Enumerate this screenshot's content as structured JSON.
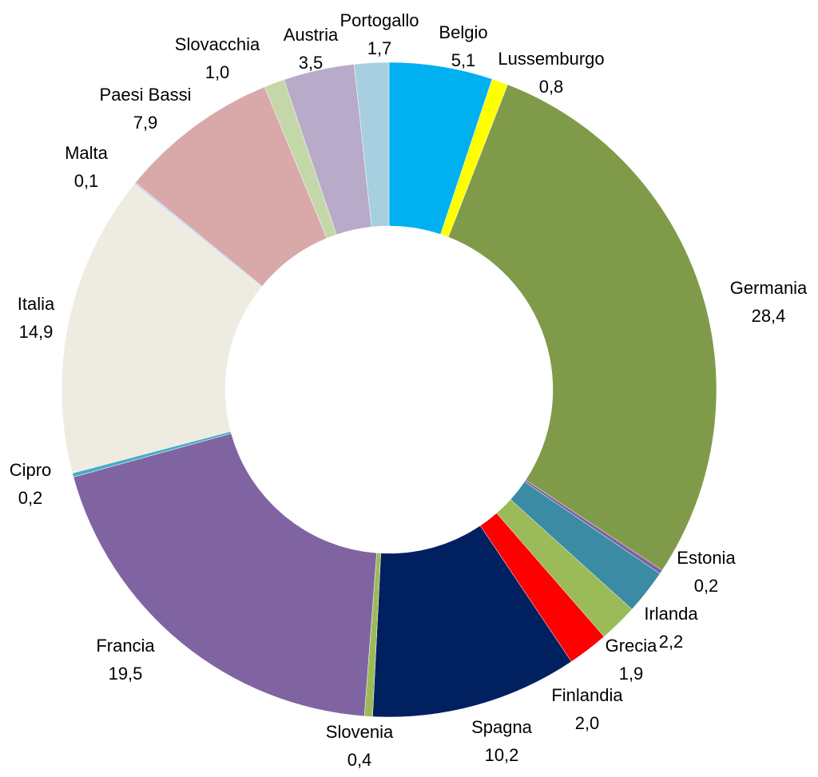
{
  "chart_data": {
    "type": "donut",
    "categories": [
      "Belgio",
      "Lussemburgo",
      "Germania",
      "Estonia",
      "Irlanda",
      "Grecia",
      "Finlandia",
      "Spagna",
      "Slovenia",
      "Francia",
      "Cipro",
      "Italia",
      "Malta",
      "Paesi Bassi",
      "Slovacchia",
      "Austria",
      "Portogallo"
    ],
    "values": [
      5.1,
      0.8,
      28.4,
      0.2,
      2.2,
      1.9,
      2.0,
      10.2,
      0.4,
      19.5,
      0.2,
      14.9,
      0.1,
      7.9,
      1.0,
      3.5,
      1.7
    ],
    "value_labels": [
      "5,1",
      "0,8",
      "28,4",
      "0,2",
      "2,2",
      "1,9",
      "2,0",
      "10,2",
      "0,4",
      "19,5",
      "0,2",
      "14,9",
      "0,1",
      "7,9",
      "1,0",
      "3,5",
      "1,7"
    ],
    "colors": [
      "#00b0f0",
      "#ffff00",
      "#7f9b4a",
      "#7f62a1",
      "#3a8ba3",
      "#9bbb59",
      "#ff0000",
      "#002060",
      "#9bbb59",
      "#8064a2",
      "#4bacc6",
      "#eeece1",
      "#c6d9f1",
      "#d9a9a9",
      "#c4d7a9",
      "#b7abc9",
      "#a8cfe0"
    ]
  }
}
